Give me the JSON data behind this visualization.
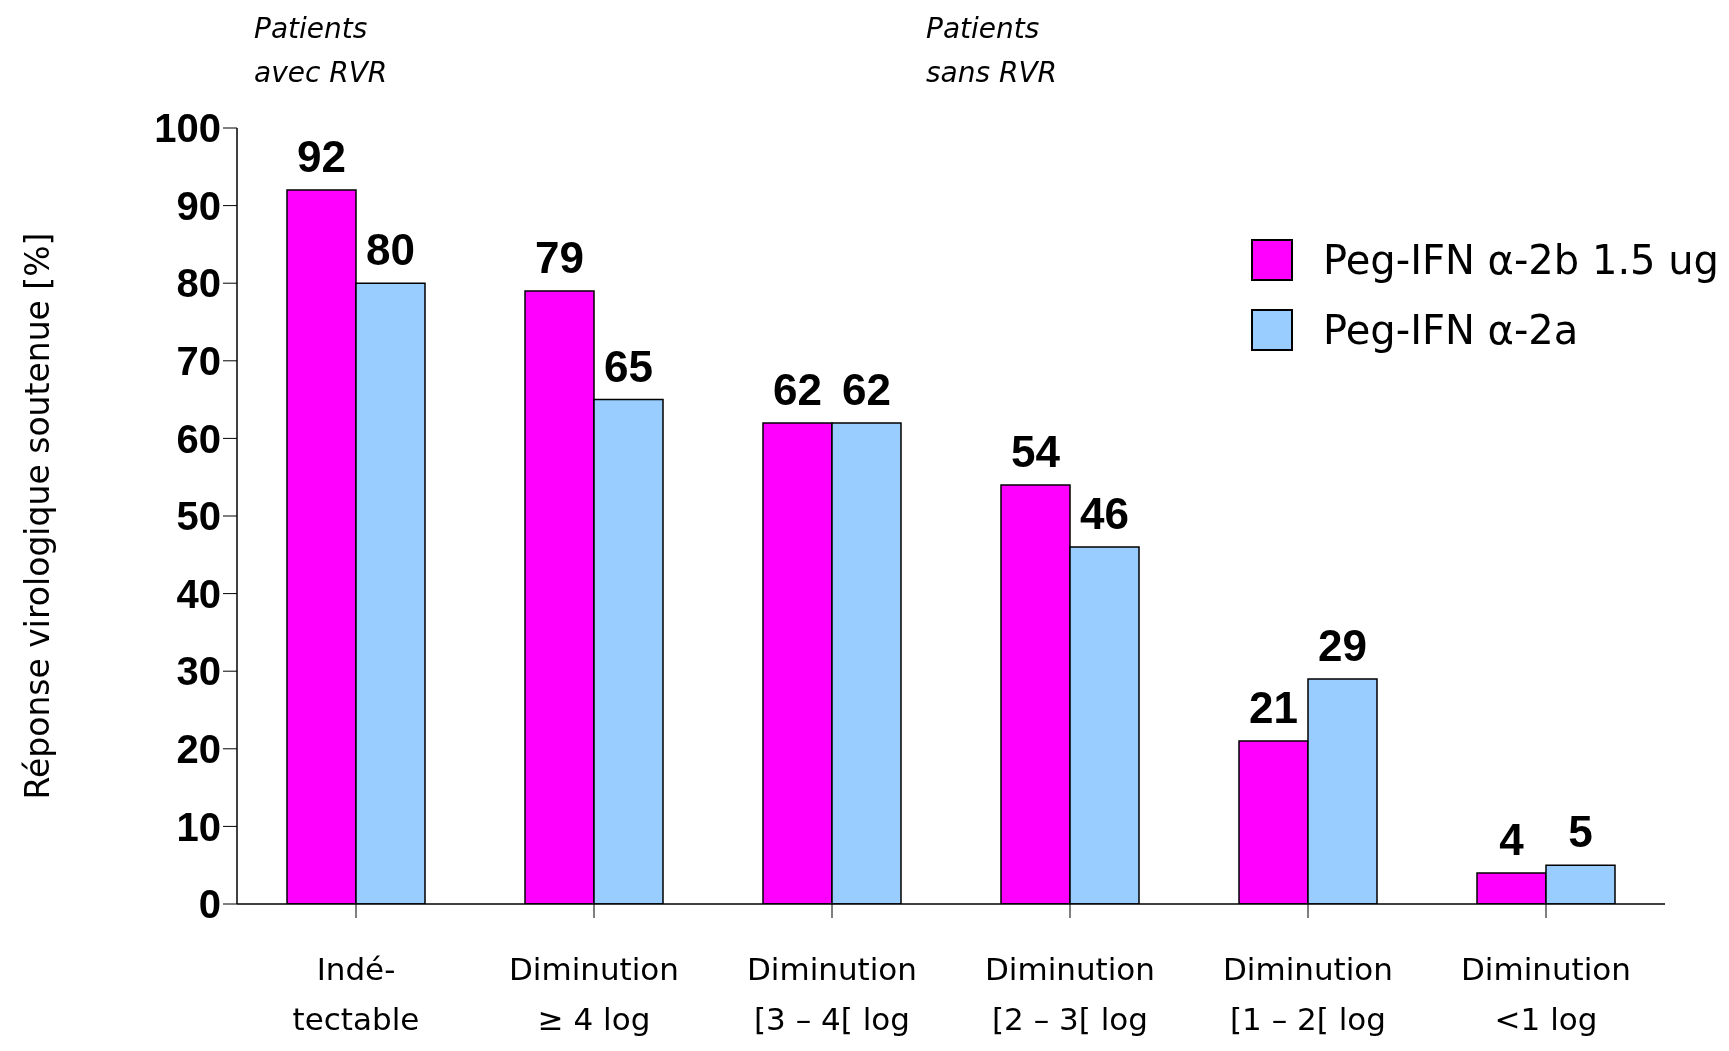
{
  "chart_data": {
    "type": "bar",
    "ylabel": "Réponse virologique soutenue [%]",
    "annotations": [
      "Patients\navec RVR",
      "Patients\nsans RVR"
    ],
    "categories": [
      "Indé-\ntectable",
      "Diminution\n≥ 4 log",
      "Diminution\n[3 – 4[ log",
      "Diminution\n[2 – 3[ log",
      "Diminution\n[1 – 2[ log",
      "Diminution\n<1 log"
    ],
    "series": [
      {
        "name": "Peg-IFN α-2b 1.5 ug",
        "color": "#ff00ff",
        "values": [
          92,
          79,
          62,
          54,
          21,
          4
        ]
      },
      {
        "name": "Peg-IFN α-2a",
        "color": "#99ccff",
        "values": [
          80,
          65,
          62,
          46,
          29,
          5
        ]
      }
    ],
    "ylim": [
      0,
      100
    ],
    "yticks": [
      0,
      10,
      20,
      30,
      40,
      50,
      60,
      70,
      80,
      90,
      100
    ],
    "data_labels": true,
    "legend": "top right"
  }
}
